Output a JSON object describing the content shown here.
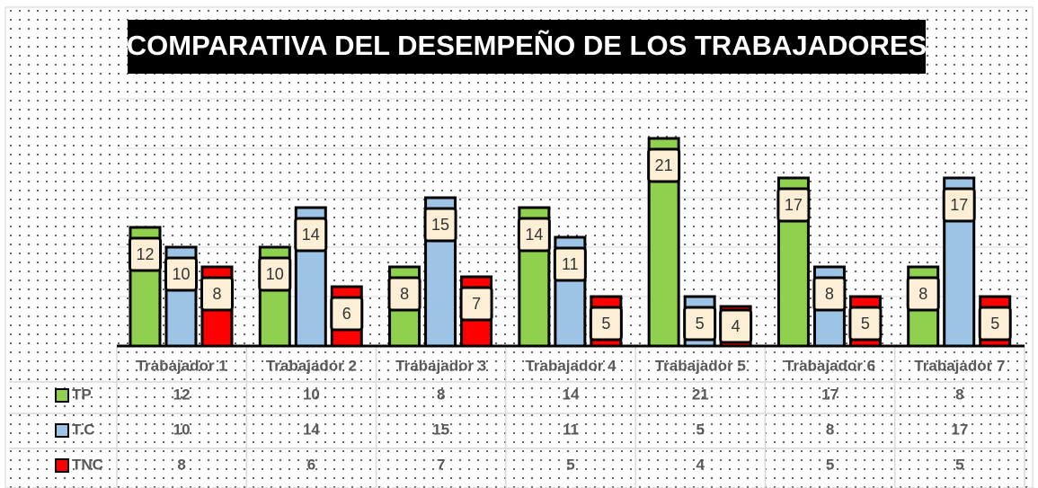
{
  "chart_data": {
    "type": "bar",
    "title": "COMPARATIVA DEL DESEMPEÑO DE LOS TRABAJADORES",
    "categories": [
      "Trabajador 1",
      "Trabajador 2",
      "Trabajador 3",
      "Trabajador 4",
      "Trabajador 5",
      "Trabajador 6",
      "Trabajador 7"
    ],
    "series": [
      {
        "name": "TP",
        "color": "#8fd14f",
        "values": [
          12,
          10,
          8,
          14,
          21,
          17,
          8
        ]
      },
      {
        "name": "T.C",
        "color": "#9dc3e6",
        "values": [
          10,
          14,
          15,
          11,
          5,
          8,
          17
        ]
      },
      {
        "name": "TNC",
        "color": "#ff0000",
        "values": [
          8,
          6,
          7,
          5,
          4,
          5,
          5
        ]
      }
    ],
    "ylim": [
      0,
      25
    ],
    "yticks": [
      0,
      5,
      10,
      15,
      20,
      25
    ],
    "grid": true
  }
}
